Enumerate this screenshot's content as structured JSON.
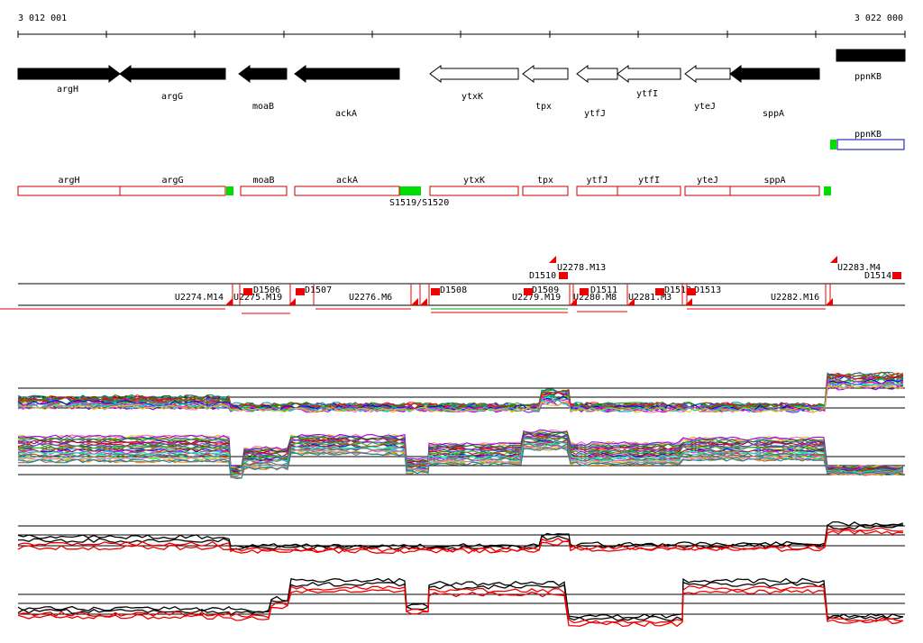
{
  "ruler": {
    "start_label": "3 012 001",
    "end_label": "3 022 000"
  },
  "genes_track": {
    "genes": [
      {
        "name": "argH",
        "strand": "+",
        "fill": "filled"
      },
      {
        "name": "argG",
        "strand": "-",
        "fill": "filled"
      },
      {
        "name": "moaB",
        "strand": "-",
        "fill": "filled"
      },
      {
        "name": "ackA",
        "strand": "-",
        "fill": "filled"
      },
      {
        "name": "ytxK",
        "strand": "-",
        "fill": "open"
      },
      {
        "name": "tpx",
        "strand": "-",
        "fill": "open"
      },
      {
        "name": "ytfJ",
        "strand": "-",
        "fill": "open"
      },
      {
        "name": "ytfI",
        "strand": "-",
        "fill": "open"
      },
      {
        "name": "yteJ",
        "strand": "-",
        "fill": "open"
      },
      {
        "name": "sppA",
        "strand": "-",
        "fill": "filled"
      },
      {
        "name": "ppnKB",
        "strand": "+",
        "fill": "filled"
      }
    ]
  },
  "annotation_track": {
    "upper_label": "ppnKB",
    "genes": [
      "argH",
      "argG",
      "moaB",
      "ackA",
      "ytxK",
      "tpx",
      "ytfJ",
      "ytfI",
      "yteJ",
      "sppA"
    ],
    "segment_label": "S1519/S1520"
  },
  "segments_track": {
    "u_labels": [
      "U2274.M14",
      "U2275.M19",
      "U2276.M6",
      "U2278.M13",
      "U2279.M19",
      "U2280.M8",
      "U2281.M3",
      "U2282.M16",
      "U2283.M4"
    ],
    "d_labels": [
      "D1506",
      "D1507",
      "D1508",
      "D1509",
      "D1510",
      "D1511",
      "D1512",
      "D1513",
      "D1514"
    ]
  },
  "colors": {
    "gene_fill": "#000000",
    "annotation_box": "#cc0000",
    "annotation_box_alt": "#0000aa",
    "start_marker": "#00dd00",
    "segment_marker": "#ee0000",
    "profile_primary": "#000000",
    "profile_secondary": "#ee0000"
  },
  "legend": {
    "title": ""
  }
}
